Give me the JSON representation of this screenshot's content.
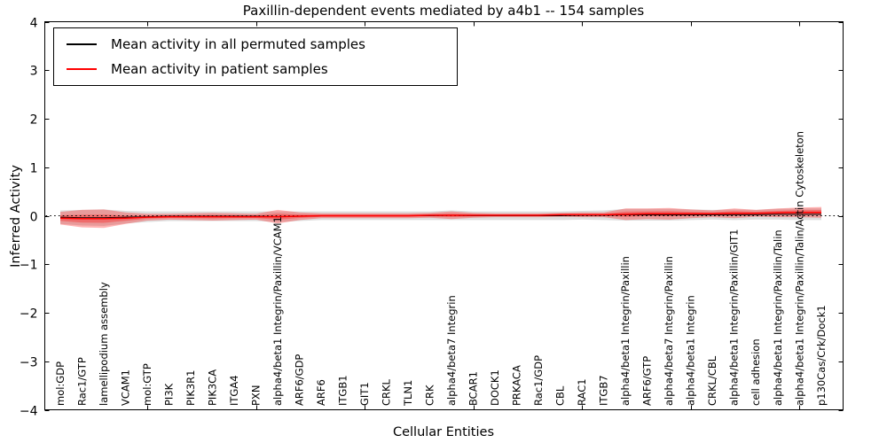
{
  "chart_data": {
    "type": "line",
    "title": "Paxillin-dependent events mediated by a4b1 -- 154 samples",
    "xlabel": "Cellular Entities",
    "ylabel": "Inferred Activity",
    "ylim": [
      -4,
      4
    ],
    "yticks": [
      4,
      3,
      2,
      1,
      0,
      -1,
      -2,
      -3,
      -4
    ],
    "xtick_positions": [
      5,
      10,
      15,
      20,
      25,
      30,
      35
    ],
    "grid": false,
    "legend_position": "upper left",
    "zero_reference_line": true,
    "categories": [
      "mol:GDP",
      "Rac1/GTP",
      "lamellipodium assembly",
      "VCAM1",
      "mol:GTP",
      "PI3K",
      "PIK3R1",
      "PIK3CA",
      "ITGA4",
      "PXN",
      "alpha4/beta1 Integrin/Paxillin/VCAM1",
      "ARF6/GDP",
      "ARF6",
      "ITGB1",
      "GIT1",
      "CRKL",
      "TLN1",
      "CRK",
      "alpha4/beta7 Integrin",
      "BCAR1",
      "DOCK1",
      "PRKACA",
      "Rac1/GDP",
      "CBL",
      "RAC1",
      "ITGB7",
      "alpha4/beta1 Integrin/Paxillin",
      "ARF6/GTP",
      "alpha4/beta7 Integrin/Paxillin",
      "alpha4/beta1 Integrin",
      "CRKL/CBL",
      "alpha4/beta1 Integrin/Paxillin/GIT1",
      "cell adhesion",
      "alpha4/beta1 Integrin/Paxillin/Talin",
      "alpha4/beta1 Integrin/Paxillin/Talin/Actin Cytoskeleton",
      "p130Cas/Crk/Dock1"
    ],
    "series": [
      {
        "name": "Mean activity in all permuted samples",
        "color": "#000000",
        "values": [
          -0.03,
          -0.04,
          -0.04,
          -0.03,
          -0.02,
          -0.01,
          -0.01,
          -0.01,
          -0.01,
          -0.01,
          -0.02,
          -0.01,
          0,
          0,
          0,
          0,
          0,
          0,
          0.01,
          0,
          0,
          0,
          0,
          0,
          0.01,
          0.01,
          0.02,
          0.02,
          0.02,
          0.02,
          0.02,
          0.02,
          0.02,
          0.03,
          0.03,
          0.03
        ],
        "band_halfwidth": [
          0.14,
          0.16,
          0.17,
          0.13,
          0.11,
          0.1,
          0.1,
          0.1,
          0.1,
          0.1,
          0.11,
          0.1,
          0.09,
          0.09,
          0.09,
          0.09,
          0.09,
          0.09,
          0.1,
          0.09,
          0.09,
          0.09,
          0.09,
          0.09,
          0.09,
          0.1,
          0.12,
          0.12,
          0.12,
          0.11,
          0.1,
          0.11,
          0.1,
          0.11,
          0.12,
          0.12
        ],
        "band_color": "#000000",
        "band_opacity": 0.13
      },
      {
        "name": "Mean activity in patient samples",
        "color": "#ff0000",
        "values": [
          -0.05,
          -0.06,
          -0.06,
          -0.05,
          -0.03,
          -0.02,
          -0.02,
          -0.02,
          -0.02,
          -0.02,
          -0.02,
          -0.01,
          0,
          0,
          0,
          0,
          0,
          0.01,
          0.01,
          0.01,
          0.01,
          0.01,
          0.01,
          0.02,
          0.02,
          0.02,
          0.03,
          0.04,
          0.04,
          0.04,
          0.04,
          0.05,
          0.05,
          0.06,
          0.07,
          0.07
        ],
        "band_halfwidth": [
          0.13,
          0.18,
          0.19,
          0.12,
          0.07,
          0.06,
          0.07,
          0.08,
          0.07,
          0.06,
          0.14,
          0.08,
          0.05,
          0.05,
          0.05,
          0.05,
          0.05,
          0.05,
          0.08,
          0.05,
          0.04,
          0.04,
          0.04,
          0.04,
          0.05,
          0.05,
          0.12,
          0.11,
          0.12,
          0.09,
          0.07,
          0.1,
          0.07,
          0.09,
          0.1,
          0.11
        ],
        "band_color": "#ff0000",
        "band_opacity": 0.3
      }
    ]
  },
  "legend": {
    "entries": [
      {
        "label": "Mean activity in all permuted samples",
        "color": "#000000"
      },
      {
        "label": "Mean activity in patient samples",
        "color": "#ff0000"
      }
    ]
  }
}
